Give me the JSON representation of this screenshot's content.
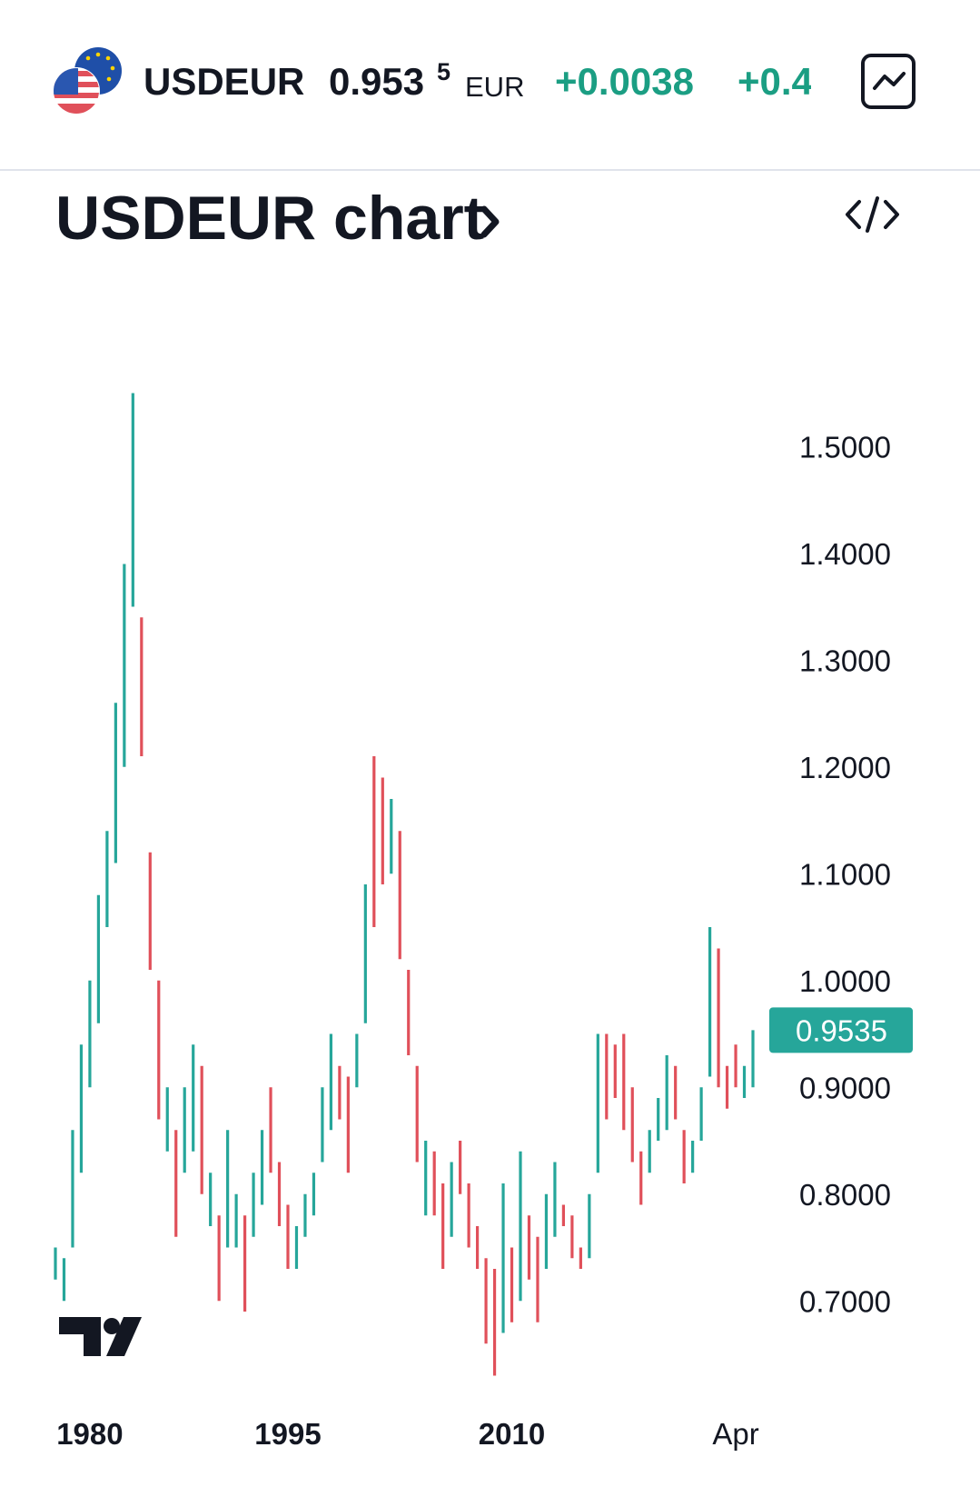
{
  "header": {
    "symbol": "USDEUR",
    "price": "0.953",
    "price_last_digit": "5",
    "currency": "EUR",
    "change": "+0.0038",
    "change_percent": "+0.4"
  },
  "chart_data": {
    "type": "ohlc",
    "title": "USDEUR chart",
    "categories": [
      null,
      null,
      null,
      null,
      "1980",
      null,
      null,
      null,
      null,
      null,
      null,
      null,
      null,
      null,
      null,
      null,
      null,
      null,
      null,
      null,
      null,
      null,
      null,
      null,
      null,
      null,
      null,
      "1995",
      null,
      null,
      null,
      null,
      null,
      null,
      null,
      null,
      null,
      null,
      null,
      null,
      null,
      null,
      null,
      null,
      null,
      null,
      null,
      null,
      null,
      null,
      null,
      null,
      null,
      "2010",
      null,
      null,
      null,
      null,
      null,
      null,
      null,
      null,
      null,
      null,
      null,
      null,
      null,
      null,
      null,
      null,
      null,
      null,
      null,
      null,
      null,
      null,
      null,
      null,
      null,
      "Apr",
      null,
      null
    ],
    "open": [
      0.72,
      0.7,
      0.75,
      0.82,
      0.9,
      0.96,
      1.05,
      1.11,
      1.2,
      1.35,
      1.34,
      1.12,
      1.0,
      0.84,
      0.86,
      0.82,
      0.84,
      0.92,
      0.77,
      0.78,
      0.75,
      0.75,
      0.78,
      0.76,
      0.79,
      0.9,
      0.83,
      0.79,
      0.73,
      0.76,
      0.78,
      0.83,
      0.86,
      0.92,
      0.91,
      0.9,
      0.96,
      1.21,
      1.19,
      1.1,
      1.14,
      1.01,
      0.92,
      0.78,
      0.84,
      0.81,
      0.76,
      0.85,
      0.81,
      0.77,
      0.74,
      0.73,
      0.67,
      0.75,
      0.7,
      0.78,
      0.76,
      0.73,
      0.76,
      0.79,
      0.78,
      0.75,
      0.74,
      0.82,
      0.95,
      0.94,
      0.95,
      0.9,
      0.84,
      0.82,
      0.85,
      0.86,
      0.92,
      0.86,
      0.82,
      0.85,
      0.91,
      1.03,
      0.92,
      0.94,
      0.89,
      0.9
    ],
    "close": [
      0.75,
      0.74,
      0.86,
      0.94,
      1.0,
      1.08,
      1.14,
      1.26,
      1.39,
      1.55,
      1.21,
      1.01,
      0.87,
      0.9,
      0.76,
      0.9,
      0.94,
      0.8,
      0.82,
      0.7,
      0.86,
      0.8,
      0.69,
      0.82,
      0.86,
      0.82,
      0.77,
      0.73,
      0.77,
      0.8,
      0.82,
      0.9,
      0.95,
      0.87,
      0.82,
      0.95,
      1.09,
      1.05,
      1.09,
      1.17,
      1.02,
      0.93,
      0.83,
      0.85,
      0.78,
      0.73,
      0.83,
      0.8,
      0.75,
      0.73,
      0.66,
      0.63,
      0.81,
      0.68,
      0.84,
      0.72,
      0.68,
      0.8,
      0.83,
      0.77,
      0.74,
      0.73,
      0.8,
      0.95,
      0.87,
      0.89,
      0.86,
      0.83,
      0.79,
      0.86,
      0.89,
      0.93,
      0.87,
      0.81,
      0.85,
      0.9,
      1.05,
      0.9,
      0.88,
      0.9,
      0.92,
      0.9535
    ],
    "up_color": "#26a69a",
    "down_color": "#e0505a",
    "ylim": [
      0.61,
      1.65
    ],
    "yticks": [
      {
        "value": 0.7,
        "label": "0.7000"
      },
      {
        "value": 0.8,
        "label": "0.8000"
      },
      {
        "value": 0.9,
        "label": "0.9000"
      },
      {
        "value": 1.0,
        "label": "1.0000"
      },
      {
        "value": 1.1,
        "label": "1.1000"
      },
      {
        "value": 1.2,
        "label": "1.2000"
      },
      {
        "value": 1.3,
        "label": "1.3000"
      },
      {
        "value": 1.4,
        "label": "1.4000"
      },
      {
        "value": 1.5,
        "label": "1.5000"
      }
    ],
    "last_price": 0.9535,
    "grid": false
  }
}
